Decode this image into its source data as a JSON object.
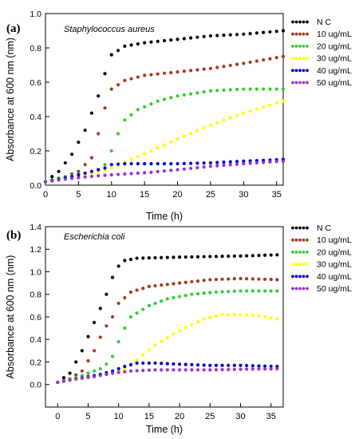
{
  "chart_data": [
    {
      "type": "scatter",
      "panel_label": "(a)",
      "organism": "Staphylococcus aureus",
      "xlabel": "Time (h)",
      "ylabel": "Absorbance at 600 nm (nm)",
      "xlim": [
        0,
        36
      ],
      "ylim": [
        0,
        1.0
      ],
      "xticks": [
        0,
        5,
        10,
        15,
        20,
        25,
        30,
        35
      ],
      "yticks": [
        0.0,
        0.2,
        0.4,
        0.6,
        0.8,
        1.0
      ],
      "ytick_labels": [
        "0.0",
        "0.2",
        "0.4",
        "0.6",
        "0.8",
        "1.0"
      ],
      "grid": false,
      "legend_position": "top-right outside",
      "series": [
        {
          "name": "N C",
          "color": "#000000",
          "points": [
            [
              0,
              0.02
            ],
            [
              2,
              0.08
            ],
            [
              4,
              0.18
            ],
            [
              6,
              0.32
            ],
            [
              8,
              0.52
            ],
            [
              9,
              0.65
            ],
            [
              10,
              0.76
            ],
            [
              12,
              0.81
            ],
            [
              15,
              0.83
            ],
            [
              20,
              0.85
            ],
            [
              25,
              0.87
            ],
            [
              30,
              0.88
            ],
            [
              36,
              0.9
            ]
          ]
        },
        {
          "name": "10 ug/mL",
          "color": "#a5391f",
          "points": [
            [
              0,
              0.02
            ],
            [
              3,
              0.05
            ],
            [
              5,
              0.08
            ],
            [
              7,
              0.16
            ],
            [
              8,
              0.3
            ],
            [
              9,
              0.45
            ],
            [
              10,
              0.56
            ],
            [
              12,
              0.61
            ],
            [
              15,
              0.64
            ],
            [
              20,
              0.66
            ],
            [
              25,
              0.68
            ],
            [
              30,
              0.71
            ],
            [
              36,
              0.75
            ]
          ]
        },
        {
          "name": "20 ug/mL",
          "color": "#33cc33",
          "points": [
            [
              0,
              0.02
            ],
            [
              3,
              0.05
            ],
            [
              6,
              0.07
            ],
            [
              8,
              0.09
            ],
            [
              9,
              0.12
            ],
            [
              10,
              0.2
            ],
            [
              11,
              0.3
            ],
            [
              12,
              0.38
            ],
            [
              14,
              0.44
            ],
            [
              17,
              0.49
            ],
            [
              20,
              0.52
            ],
            [
              25,
              0.55
            ],
            [
              30,
              0.56
            ],
            [
              36,
              0.56
            ]
          ]
        },
        {
          "name": "30 ug/mL",
          "color": "#ffff00",
          "points": [
            [
              0,
              0.02
            ],
            [
              5,
              0.05
            ],
            [
              8,
              0.08
            ],
            [
              10,
              0.1
            ],
            [
              13,
              0.15
            ],
            [
              16,
              0.2
            ],
            [
              20,
              0.27
            ],
            [
              25,
              0.35
            ],
            [
              30,
              0.42
            ],
            [
              36,
              0.49
            ]
          ]
        },
        {
          "name": "40 ug/mL",
          "color": "#0000cc",
          "points": [
            [
              0,
              0.02
            ],
            [
              4,
              0.05
            ],
            [
              7,
              0.08
            ],
            [
              9,
              0.1
            ],
            [
              10,
              0.12
            ],
            [
              12,
              0.125
            ],
            [
              15,
              0.125
            ],
            [
              20,
              0.125
            ],
            [
              25,
              0.13
            ],
            [
              30,
              0.14
            ],
            [
              36,
              0.15
            ]
          ]
        },
        {
          "name": "50 ug/mL",
          "color": "#9933cc",
          "points": [
            [
              0,
              0.02
            ],
            [
              4,
              0.04
            ],
            [
              8,
              0.055
            ],
            [
              12,
              0.065
            ],
            [
              16,
              0.075
            ],
            [
              20,
              0.09
            ],
            [
              25,
              0.11
            ],
            [
              30,
              0.125
            ],
            [
              36,
              0.14
            ]
          ]
        }
      ]
    },
    {
      "type": "scatter",
      "panel_label": "(b)",
      "organism": "Escherichia coli",
      "xlabel": "Time (h)",
      "ylabel": "Absorbance at 600 nm (nm)",
      "xlim": [
        -2,
        37
      ],
      "ylim": [
        -0.2,
        1.4
      ],
      "xticks": [
        0,
        5,
        10,
        15,
        20,
        25,
        30,
        35
      ],
      "yticks": [
        0.0,
        0.2,
        0.4,
        0.6,
        0.8,
        1.0,
        1.2,
        1.4
      ],
      "ytick_labels": [
        "0.0",
        "0.2",
        "0.4",
        "0.6",
        "0.8",
        "1.0",
        "1.2",
        "1.4"
      ],
      "grid": false,
      "legend_position": "top-right outside",
      "series": [
        {
          "name": "N C",
          "color": "#000000",
          "points": [
            [
              0,
              0.02
            ],
            [
              2,
              0.1
            ],
            [
              4,
              0.3
            ],
            [
              6,
              0.55
            ],
            [
              8,
              0.8
            ],
            [
              9,
              0.95
            ],
            [
              10,
              1.05
            ],
            [
              11,
              1.1
            ],
            [
              13,
              1.12
            ],
            [
              20,
              1.13
            ],
            [
              30,
              1.14
            ],
            [
              36,
              1.15
            ]
          ]
        },
        {
          "name": "10 ug/mL",
          "color": "#a5391f",
          "points": [
            [
              0,
              0.02
            ],
            [
              2,
              0.05
            ],
            [
              4,
              0.12
            ],
            [
              6,
              0.3
            ],
            [
              7,
              0.42
            ],
            [
              8,
              0.52
            ],
            [
              9,
              0.6
            ],
            [
              10,
              0.72
            ],
            [
              12,
              0.82
            ],
            [
              15,
              0.87
            ],
            [
              20,
              0.9
            ],
            [
              25,
              0.93
            ],
            [
              30,
              0.94
            ],
            [
              36,
              0.93
            ]
          ]
        },
        {
          "name": "20 ug/mL",
          "color": "#33cc33",
          "points": [
            [
              0,
              0.02
            ],
            [
              3,
              0.06
            ],
            [
              5,
              0.1
            ],
            [
              7,
              0.14
            ],
            [
              8,
              0.18
            ],
            [
              9,
              0.25
            ],
            [
              10,
              0.38
            ],
            [
              11,
              0.5
            ],
            [
              12,
              0.6
            ],
            [
              15,
              0.7
            ],
            [
              18,
              0.76
            ],
            [
              22,
              0.8
            ],
            [
              26,
              0.82
            ],
            [
              30,
              0.83
            ],
            [
              36,
              0.83
            ]
          ]
        },
        {
          "name": "30 ug/mL",
          "color": "#ffff00",
          "points": [
            [
              0,
              0.02
            ],
            [
              5,
              0.06
            ],
            [
              9,
              0.1
            ],
            [
              11,
              0.14
            ],
            [
              13,
              0.22
            ],
            [
              16,
              0.35
            ],
            [
              20,
              0.48
            ],
            [
              24,
              0.58
            ],
            [
              27,
              0.62
            ],
            [
              30,
              0.62
            ],
            [
              33,
              0.61
            ],
            [
              36,
              0.58
            ]
          ]
        },
        {
          "name": "40 ug/mL",
          "color": "#0000cc",
          "points": [
            [
              0,
              0.02
            ],
            [
              4,
              0.06
            ],
            [
              7,
              0.09
            ],
            [
              9,
              0.12
            ],
            [
              11,
              0.16
            ],
            [
              13,
              0.19
            ],
            [
              16,
              0.19
            ],
            [
              20,
              0.18
            ],
            [
              25,
              0.17
            ],
            [
              30,
              0.17
            ],
            [
              36,
              0.16
            ]
          ]
        },
        {
          "name": "50 ug/mL",
          "color": "#9933cc",
          "points": [
            [
              0,
              0.02
            ],
            [
              3,
              0.05
            ],
            [
              6,
              0.07
            ],
            [
              9,
              0.1
            ],
            [
              12,
              0.12
            ],
            [
              16,
              0.13
            ],
            [
              20,
              0.13
            ],
            [
              25,
              0.13
            ],
            [
              30,
              0.135
            ],
            [
              36,
              0.14
            ]
          ]
        }
      ]
    }
  ]
}
